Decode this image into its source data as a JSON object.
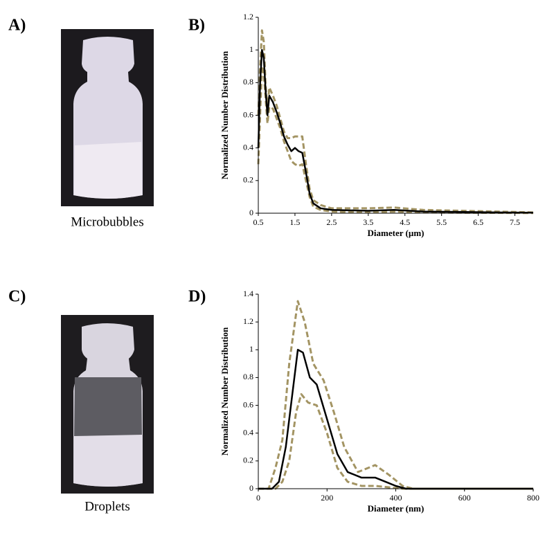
{
  "panels": [
    {
      "label": "A)",
      "caption": "Microbubbles"
    },
    {
      "label": "B)"
    },
    {
      "label": "C)",
      "caption": "Droplets"
    },
    {
      "label": "D)"
    }
  ],
  "chart_data": [
    {
      "type": "line",
      "xlabel": "Diameter (µm)",
      "ylabel": "Normalized Number Distribution",
      "xlim": [
        0.5,
        8
      ],
      "xticks": [
        0.5,
        1.5,
        2.5,
        3.5,
        4.5,
        5.5,
        6.5,
        7.5
      ],
      "ylim": [
        0,
        1.2
      ],
      "yticks": [
        0,
        0.2,
        0.4,
        0.6,
        0.8,
        1,
        1.2
      ],
      "series": [
        {
          "color": "#a39463",
          "dash": true,
          "x": [
            0.5,
            0.55,
            0.6,
            0.65,
            0.7,
            0.75,
            0.8,
            0.9,
            1.0,
            1.1,
            1.2,
            1.3,
            1.4,
            1.5,
            1.6,
            1.7,
            1.8,
            1.9,
            2.0,
            2.2,
            2.5,
            3.5,
            4.2,
            5,
            6,
            7,
            8
          ],
          "values": [
            0.6,
            0.9,
            1.12,
            1.05,
            0.78,
            0.65,
            0.77,
            0.72,
            0.66,
            0.58,
            0.5,
            0.46,
            0.46,
            0.47,
            0.47,
            0.47,
            0.3,
            0.15,
            0.08,
            0.05,
            0.03,
            0.03,
            0.035,
            0.02,
            0.015,
            0.01,
            0.005
          ]
        },
        {
          "color": "#a39463",
          "dash": true,
          "x": [
            0.5,
            0.55,
            0.6,
            0.65,
            0.7,
            0.75,
            0.8,
            0.9,
            1.0,
            1.1,
            1.2,
            1.3,
            1.4,
            1.5,
            1.6,
            1.7,
            1.8,
            1.9,
            2.0,
            2.2,
            2.5,
            3.5,
            4.2,
            5,
            6,
            7,
            8
          ],
          "values": [
            0.3,
            0.6,
            0.9,
            0.85,
            0.7,
            0.55,
            0.65,
            0.64,
            0.58,
            0.52,
            0.44,
            0.38,
            0.32,
            0.3,
            0.29,
            0.3,
            0.2,
            0.1,
            0.04,
            0.02,
            0.01,
            0.005,
            0.01,
            0.005,
            0.003,
            0.002,
            0.001
          ]
        },
        {
          "color": "#000000",
          "dash": false,
          "x": [
            0.5,
            0.55,
            0.6,
            0.65,
            0.7,
            0.75,
            0.8,
            0.9,
            1.0,
            1.1,
            1.2,
            1.3,
            1.4,
            1.5,
            1.6,
            1.7,
            1.8,
            1.9,
            2.0,
            2.2,
            2.5,
            3.5,
            4.2,
            5,
            6,
            7,
            8
          ],
          "values": [
            0.4,
            0.8,
            1.0,
            0.95,
            0.75,
            0.6,
            0.72,
            0.68,
            0.62,
            0.55,
            0.47,
            0.42,
            0.38,
            0.4,
            0.38,
            0.37,
            0.25,
            0.12,
            0.06,
            0.03,
            0.02,
            0.015,
            0.02,
            0.01,
            0.008,
            0.005,
            0.003
          ]
        }
      ]
    },
    {
      "type": "line",
      "xlabel": "Diameter (nm)",
      "ylabel": "Normalized Number Distribution",
      "xlim": [
        0,
        800
      ],
      "xticks": [
        0,
        200,
        400,
        600,
        800
      ],
      "ylim": [
        0,
        1.4
      ],
      "yticks": [
        0,
        0.2,
        0.4,
        0.6,
        0.8,
        1,
        1.2,
        1.4
      ],
      "series": [
        {
          "color": "#a39463",
          "dash": true,
          "x": [
            0,
            30,
            50,
            70,
            90,
            115,
            135,
            160,
            190,
            220,
            250,
            290,
            340,
            380,
            420,
            450,
            800
          ],
          "values": [
            0,
            0,
            0.15,
            0.35,
            0.9,
            1.35,
            1.2,
            0.9,
            0.78,
            0.55,
            0.3,
            0.12,
            0.17,
            0.1,
            0.02,
            0,
            0
          ]
        },
        {
          "color": "#a39463",
          "dash": true,
          "x": [
            0,
            50,
            70,
            90,
            110,
            125,
            145,
            170,
            200,
            230,
            260,
            300,
            340,
            380,
            420,
            800
          ],
          "values": [
            0,
            0,
            0.05,
            0.2,
            0.55,
            0.68,
            0.62,
            0.6,
            0.4,
            0.15,
            0.05,
            0.02,
            0.02,
            0.01,
            0,
            0
          ]
        },
        {
          "color": "#000000",
          "dash": false,
          "x": [
            0,
            40,
            60,
            80,
            100,
            115,
            130,
            150,
            170,
            200,
            230,
            260,
            300,
            340,
            370,
            400,
            430,
            800
          ],
          "values": [
            0,
            0,
            0.05,
            0.3,
            0.7,
            1.0,
            0.98,
            0.8,
            0.75,
            0.5,
            0.25,
            0.12,
            0.08,
            0.08,
            0.05,
            0.02,
            0,
            0
          ]
        }
      ]
    }
  ]
}
